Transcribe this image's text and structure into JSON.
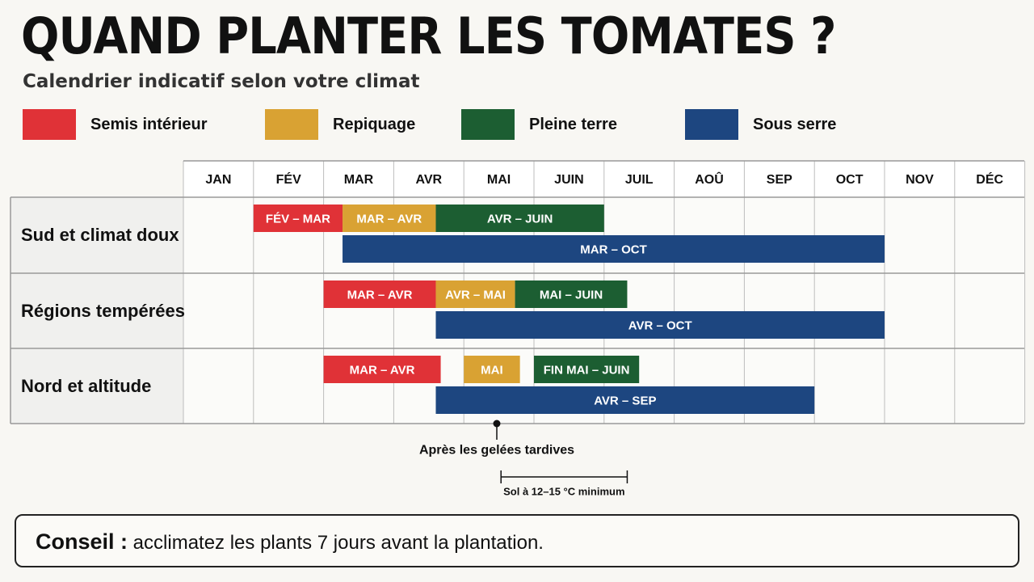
{
  "title": "QUAND PLANTER LES TOMATES ?",
  "subtitle": "Calendrier indicatif selon votre climat",
  "legend": [
    {
      "label": "Semis intérieur",
      "color": "#e03237"
    },
    {
      "label": "Repiquage",
      "color": "#d9a233"
    },
    {
      "label": "Pleine terre",
      "color": "#1c5e32"
    },
    {
      "label": "Sous serre",
      "color": "#1d4680"
    }
  ],
  "chart_data": {
    "type": "table",
    "months": [
      "JAN",
      "FÉV",
      "MAR",
      "AVR",
      "MAI",
      "JUIN",
      "JUIL",
      "AOÛ",
      "SEP",
      "OCT",
      "NOV",
      "DÉC"
    ],
    "rows": [
      {
        "label": "Sud et climat doux",
        "bars": [
          {
            "phase": "Semis intérieur",
            "label": "FÉV – MAR",
            "start": 1.0,
            "end": 2.27
          },
          {
            "phase": "Repiquage",
            "label": "MAR – AVR",
            "start": 2.27,
            "end": 3.6
          },
          {
            "phase": "Pleine terre",
            "label": "AVR – JUIN",
            "start": 3.6,
            "end": 6.0
          },
          {
            "phase": "Sous serre",
            "label": "MAR – OCT",
            "start": 2.27,
            "end": 10.0
          }
        ]
      },
      {
        "label": "Régions tempérées",
        "bars": [
          {
            "phase": "Semis intérieur",
            "label": "MAR – AVR",
            "start": 2.0,
            "end": 3.6
          },
          {
            "phase": "Repiquage",
            "label": "AVR – MAI",
            "start": 3.6,
            "end": 4.73
          },
          {
            "phase": "Pleine terre",
            "label": "MAI – JUIN",
            "start": 4.73,
            "end": 6.33
          },
          {
            "phase": "Sous serre",
            "label": "AVR – OCT",
            "start": 3.6,
            "end": 10.0
          }
        ]
      },
      {
        "label": "Nord et altitude",
        "bars": [
          {
            "phase": "Semis intérieur",
            "label": "MAR – AVR",
            "start": 2.0,
            "end": 3.67
          },
          {
            "phase": "Repiquage",
            "label": "MAI",
            "start": 4.0,
            "end": 4.8
          },
          {
            "phase": "Pleine terre",
            "label": "FIN MAI – JUIN",
            "start": 5.0,
            "end": 6.5
          },
          {
            "phase": "Sous serre",
            "label": "AVR – SEP",
            "start": 3.6,
            "end": 9.0
          }
        ]
      }
    ],
    "annotations": [
      {
        "text": "Après les gelées tardives",
        "month": 4.47
      },
      {
        "text": "Sol à 12–15 °C minimum",
        "start": 4.53,
        "end": 6.33
      }
    ]
  },
  "tip": {
    "strong": "Conseil :",
    "text": " acclimatez les plants 7 jours avant la plantation."
  }
}
